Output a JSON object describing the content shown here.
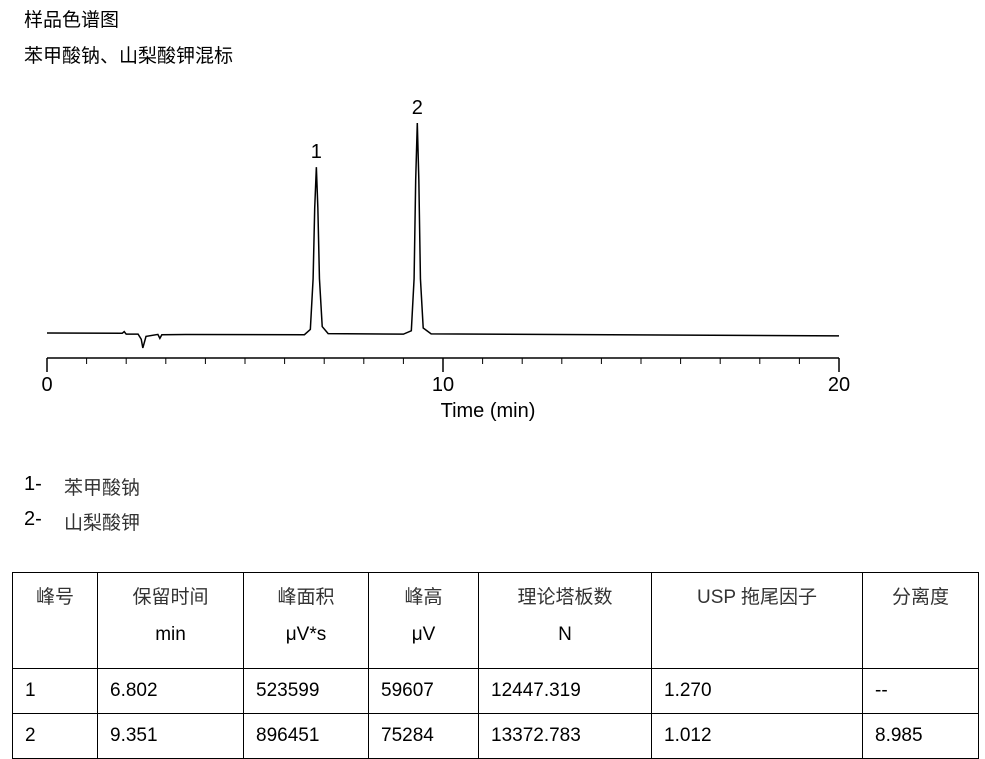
{
  "header": {
    "title": "样品色谱图",
    "subtitle": "苯甲酸钠、山梨酸钾混标"
  },
  "chart_data": {
    "type": "line",
    "x_label": "Time (min)",
    "x": [
      0,
      1.9,
      1.95,
      2.0,
      2.3,
      2.38,
      2.42,
      2.5,
      2.8,
      2.85,
      2.9,
      3.5,
      6.5,
      6.65,
      6.72,
      6.76,
      6.802,
      6.84,
      6.88,
      6.95,
      7.1,
      9.0,
      9.2,
      9.27,
      9.31,
      9.351,
      9.39,
      9.43,
      9.5,
      9.7,
      20
    ],
    "values": [
      700,
      600,
      1200,
      300,
      300,
      -1500,
      -4600,
      -500,
      200,
      -1200,
      100,
      200,
      100,
      2000,
      20000,
      45000,
      59607,
      45000,
      20000,
      3000,
      500,
      300,
      1500,
      20000,
      55000,
      75284,
      55000,
      20000,
      2500,
      400,
      -300
    ],
    "color": "#000000",
    "peaks": [
      {
        "label": "1",
        "x": 6.802,
        "height": 59607
      },
      {
        "label": "2",
        "x": 9.351,
        "height": 75284
      }
    ],
    "xlim": [
      0,
      20
    ],
    "xticks": [
      0,
      10,
      20
    ],
    "xticks_minor": [
      1,
      2,
      3,
      4,
      5,
      6,
      7,
      8,
      9,
      11,
      12,
      13,
      14,
      15,
      16,
      17,
      18,
      19
    ],
    "ylim": [
      -64000,
      86000
    ]
  },
  "peak_list": [
    {
      "number": "1-",
      "name": "苯甲酸钠"
    },
    {
      "number": "2-",
      "name": "山梨酸钾"
    }
  ],
  "table": {
    "columns": [
      {
        "name": "峰号"
      },
      {
        "name": "保留时间",
        "unit": "min"
      },
      {
        "name": "峰面积",
        "unit": "μV*s"
      },
      {
        "name": "峰高",
        "unit": "μV"
      },
      {
        "name": "理论塔板数",
        "unit": "N"
      },
      {
        "name": "USP 拖尾因子"
      },
      {
        "name": "分离度"
      }
    ],
    "rows": [
      [
        "1",
        "6.802",
        "523599",
        "59607",
        "12447.319",
        "1.270",
        "--"
      ],
      [
        "2",
        "9.351",
        "896451",
        "75284",
        "13372.783",
        "1.012",
        "8.985"
      ]
    ]
  }
}
